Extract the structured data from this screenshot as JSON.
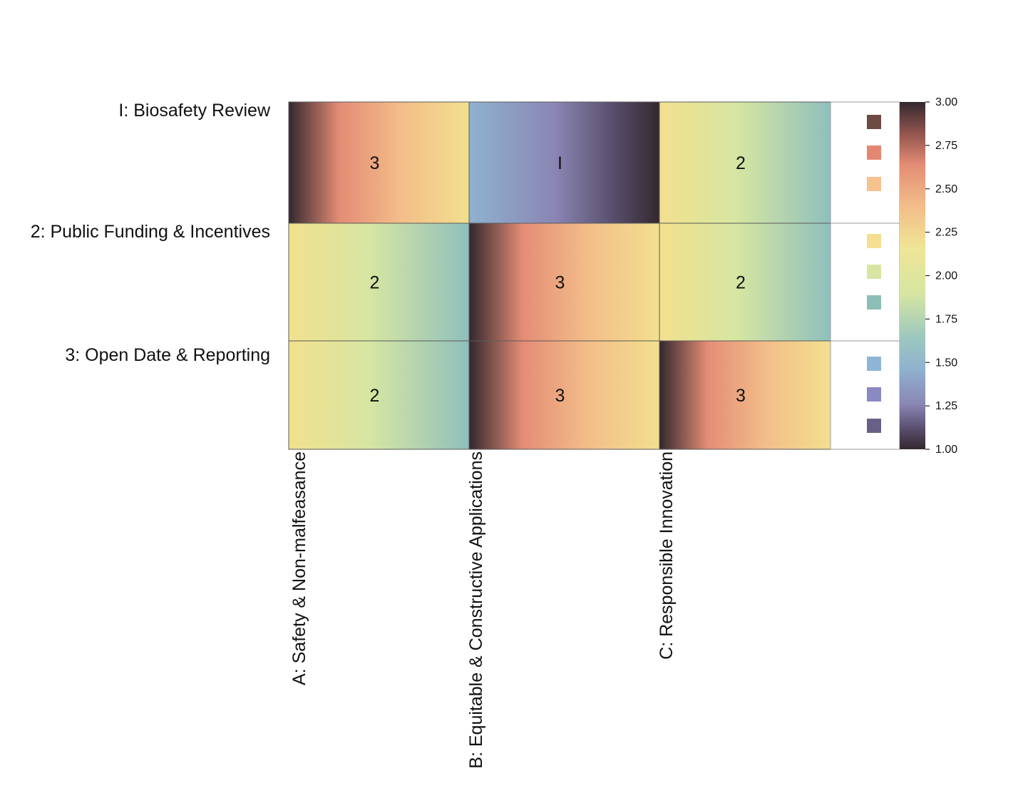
{
  "chart_data": {
    "type": "heatmap",
    "title": "",
    "rows": [
      "I: Biosafety Review",
      "2: Public Funding & Incentives",
      "3: Open Date & Reporting"
    ],
    "columns": [
      "A: Safety & Non-malfeasance",
      "B: Equitable & Constructive Applications",
      "C: Responsible Innovation"
    ],
    "values": [
      [
        3,
        1,
        2
      ],
      [
        2,
        3,
        2
      ],
      [
        2,
        3,
        3
      ]
    ],
    "value_labels": [
      [
        "3",
        "I",
        "2"
      ],
      [
        "2",
        "3",
        "2"
      ],
      [
        "2",
        "3",
        "3"
      ]
    ],
    "colorbar": {
      "range": [
        1.0,
        3.0
      ],
      "ticks": [
        "3.00",
        "2.75",
        "2.50",
        "2.25",
        "2.00",
        "1.75",
        "1.50",
        "1.25",
        "1.00"
      ]
    },
    "colors": {
      "dark": "#33282e",
      "red": "#e38c75",
      "orange": "#f3bd89",
      "yellow": "#f2e08e",
      "lime": "#d6e6a2",
      "teal": "#8fbfbd",
      "blue": "#8fb2cf",
      "purple": "#8a86b4",
      "plum": "#5a4f6e"
    },
    "legend_swatches": [
      [
        "#6e4a45",
        "#e48772",
        "#f6c28f"
      ],
      [
        "#f5dd91",
        "#d6e6a2",
        "#8dbdb7"
      ],
      [
        "#8fb5d4",
        "#8b89c2",
        "#6a5f86"
      ]
    ]
  }
}
